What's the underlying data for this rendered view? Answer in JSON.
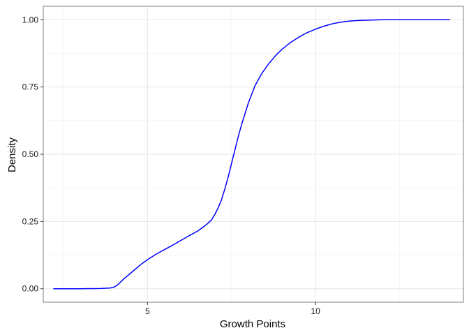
{
  "chart_data": {
    "type": "line",
    "title": "",
    "xlabel": "Growth Points",
    "ylabel": "Density",
    "xlim": [
      1.9,
      14.4
    ],
    "ylim": [
      -0.05,
      1.05
    ],
    "x_ticks": [
      5,
      10
    ],
    "x_minor_ticks": [
      2.5,
      7.5,
      12.5
    ],
    "y_ticks": [
      0.0,
      0.25,
      0.5,
      0.75,
      1.0
    ],
    "y_tick_labels": [
      "0.00",
      "0.25",
      "0.50",
      "0.75",
      "1.00"
    ],
    "y_minor_ticks": [
      0.125,
      0.375,
      0.625,
      0.875
    ],
    "grid": true,
    "legend": "none",
    "series": [
      {
        "color": "#0000ff",
        "x": [
          2.2,
          3.0,
          3.6,
          3.9,
          4.0,
          4.1,
          4.2,
          4.3,
          4.5,
          4.8,
          5.0,
          5.25,
          5.5,
          5.75,
          6.0,
          6.25,
          6.5,
          6.75,
          6.9,
          7.0,
          7.1,
          7.2,
          7.3,
          7.4,
          7.5,
          7.6,
          7.7,
          7.8,
          8.0,
          8.2,
          8.4,
          8.6,
          8.8,
          9.0,
          9.25,
          9.5,
          9.75,
          10.0,
          10.25,
          10.5,
          10.75,
          11.0,
          11.25,
          11.5,
          11.75,
          12.0,
          12.5,
          13.0,
          13.5,
          14.0
        ],
        "y": [
          0.0,
          0.0,
          0.001,
          0.003,
          0.006,
          0.013,
          0.025,
          0.037,
          0.058,
          0.09,
          0.108,
          0.128,
          0.145,
          0.162,
          0.18,
          0.198,
          0.215,
          0.238,
          0.255,
          0.275,
          0.3,
          0.33,
          0.37,
          0.415,
          0.465,
          0.515,
          0.565,
          0.61,
          0.69,
          0.755,
          0.8,
          0.835,
          0.865,
          0.89,
          0.915,
          0.935,
          0.952,
          0.965,
          0.976,
          0.985,
          0.991,
          0.995,
          0.997,
          0.998,
          0.999,
          1.0,
          1.0,
          1.0,
          1.0,
          1.0
        ]
      }
    ]
  }
}
